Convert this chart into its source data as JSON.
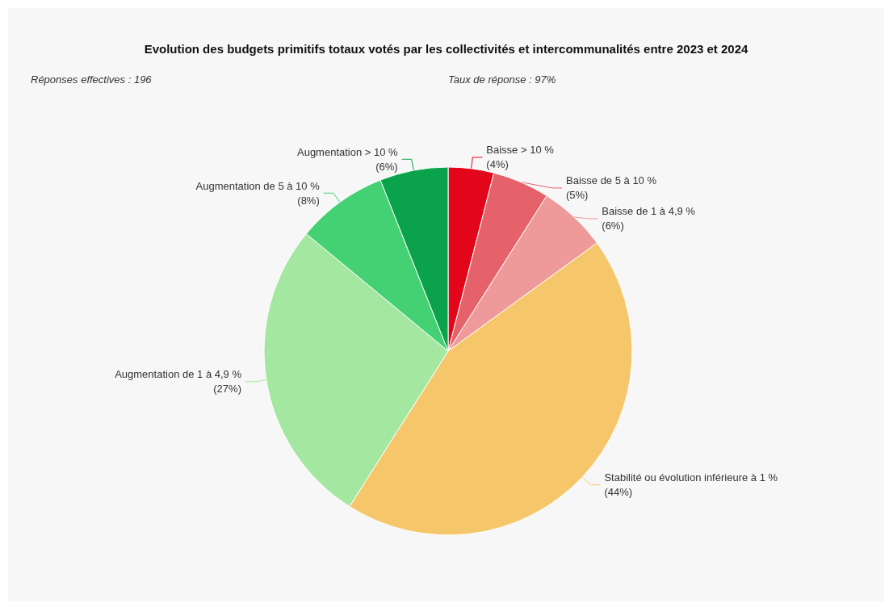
{
  "chart_data": {
    "type": "pie",
    "title": "Evolution des budgets primitifs totaux votés par les collectivités et intercommunalités entre 2023 et 2024",
    "annotations": [
      "Réponses effectives : 196",
      "Taux de réponse : 97%"
    ],
    "categories": [
      "Baisse > 10 %",
      "Baisse de 5 à 10 %",
      "Baisse de 1 à 4,9 %",
      "Stabilité ou évolution inférieure à 1 %",
      "Augmentation de 1 à 4,9 %",
      "Augmentation de 5 à 10 %",
      "Augmentation > 10 %"
    ],
    "values": [
      4,
      5,
      6,
      44,
      27,
      8,
      6
    ],
    "value_labels": [
      "(4%)",
      "(5%)",
      "(6%)",
      "(44%)",
      "(27%)",
      "(8%)",
      "(6%)"
    ],
    "colors": [
      "#e3061a",
      "#e6626a",
      "#ee9a9a",
      "#f5c76a",
      "#a4e7a0",
      "#44d173",
      "#0aa34c"
    ],
    "legend": false
  }
}
